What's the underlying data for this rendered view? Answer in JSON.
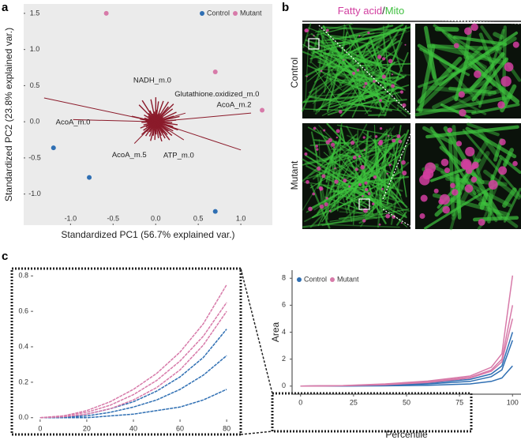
{
  "panel_labels": [
    "a",
    "b",
    "c"
  ],
  "microscopy": {
    "stain_1": "Fatty acid",
    "separator": "/",
    "stain_2": "Mito",
    "rows": [
      "Control",
      "Mutant"
    ]
  },
  "chart_data": [
    {
      "type": "scatter",
      "x_label": "Standardized PC1 (56.7% explained var.)",
      "y_label": "Standardized PC2 (23.8% explained var.)",
      "xlim": [
        -1.55,
        1.37
      ],
      "ylim": [
        -1.43,
        1.63
      ],
      "xticks": [
        {
          "value": -1,
          "label": "-1.0"
        },
        -0.5,
        {
          "value": 0,
          "label": "0.0"
        },
        0.5,
        {
          "value": 1,
          "label": "1.0"
        }
      ],
      "yticks": [
        {
          "value": -1,
          "label": "-1.0"
        },
        -0.5,
        {
          "value": 0,
          "label": "0.0"
        },
        0.5,
        {
          "value": 1,
          "label": "1.0"
        },
        1.5
      ],
      "legend": "top-right",
      "series": [
        {
          "name": "Control",
          "color": "#2f6fb3",
          "x": [
            -1.2,
            -0.78,
            0.7
          ],
          "values": [
            -0.36,
            -0.77,
            -1.24
          ]
        },
        {
          "name": "Mutant",
          "color": "#d77aa9",
          "x": [
            -0.58,
            0.7,
            1.25
          ],
          "values": [
            1.5,
            0.69,
            0.16
          ]
        }
      ],
      "annotations": [
        {
          "text": "NADH_m.0",
          "x": -0.04,
          "y": 0.57
        },
        {
          "text": "Glutathione.oxidized_m.0",
          "x": 0.72,
          "y": 0.38
        },
        {
          "text": "AcoA_m.2",
          "x": 0.92,
          "y": 0.23
        },
        {
          "text": "AcoA_m.0",
          "x": -0.97,
          "y": -0.01
        },
        {
          "text": "AcoA_m.5",
          "x": -0.31,
          "y": -0.46
        },
        {
          "text": "ATP_m.0",
          "x": 0.27,
          "y": -0.47
        }
      ]
    },
    {
      "type": "line",
      "x": [
        0,
        10,
        20,
        30,
        40,
        50,
        60,
        70,
        80
      ],
      "xlim": [
        -3,
        83
      ],
      "ylim": [
        -0.01,
        0.81
      ],
      "xticks": [
        0,
        20,
        40,
        60,
        80
      ],
      "yticks": [
        {
          "value": 0,
          "label": "0.0"
        },
        0.2,
        0.4,
        0.6,
        0.8
      ],
      "series": [
        {
          "name": "Control",
          "color": "#2f6fb3",
          "values": [
            [
              0,
              0,
              0.02,
              0.05,
              0.09,
              0.15,
              0.23,
              0.34,
              0.5
            ],
            [
              0,
              0,
              0.01,
              0.03,
              0.06,
              0.1,
              0.16,
              0.24,
              0.35
            ],
            [
              0,
              0,
              0,
              0.01,
              0.02,
              0.04,
              0.06,
              0.1,
              0.16
            ]
          ]
        },
        {
          "name": "Mutant",
          "color": "#d77aa9",
          "values": [
            [
              0,
              0.01,
              0.04,
              0.09,
              0.16,
              0.25,
              0.37,
              0.53,
              0.75
            ],
            [
              0,
              0.01,
              0.03,
              0.07,
              0.13,
              0.21,
              0.32,
              0.46,
              0.65
            ],
            [
              0,
              0.005,
              0.02,
              0.05,
              0.1,
              0.17,
              0.27,
              0.41,
              0.6
            ]
          ]
        }
      ]
    },
    {
      "type": "line",
      "x_label": "Percentile",
      "y_label": "Area",
      "x": [
        0,
        20,
        40,
        60,
        80,
        90,
        95,
        100
      ],
      "xlim": [
        -4,
        104
      ],
      "ylim": [
        -0.6,
        8.6
      ],
      "xticks": [
        0,
        25,
        50,
        75,
        100
      ],
      "yticks": [
        0,
        2,
        4,
        6,
        8
      ],
      "legend": "top-left",
      "series": [
        {
          "name": "Control",
          "color": "#2f6fb3",
          "values": [
            [
              0,
              0.02,
              0.09,
              0.23,
              0.5,
              0.9,
              1.5,
              4.0
            ],
            [
              0,
              0.01,
              0.06,
              0.16,
              0.35,
              0.7,
              1.2,
              3.4
            ],
            [
              0,
              0,
              0.02,
              0.06,
              0.16,
              0.35,
              0.6,
              1.5
            ]
          ]
        },
        {
          "name": "Mutant",
          "color": "#d77aa9",
          "values": [
            [
              0,
              0.04,
              0.16,
              0.37,
              0.75,
              1.4,
              2.4,
              8.2
            ],
            [
              0,
              0.03,
              0.13,
              0.32,
              0.65,
              1.2,
              2.0,
              6.0
            ],
            [
              0,
              0.02,
              0.1,
              0.27,
              0.6,
              1.1,
              1.8,
              5.0
            ]
          ]
        }
      ]
    }
  ]
}
